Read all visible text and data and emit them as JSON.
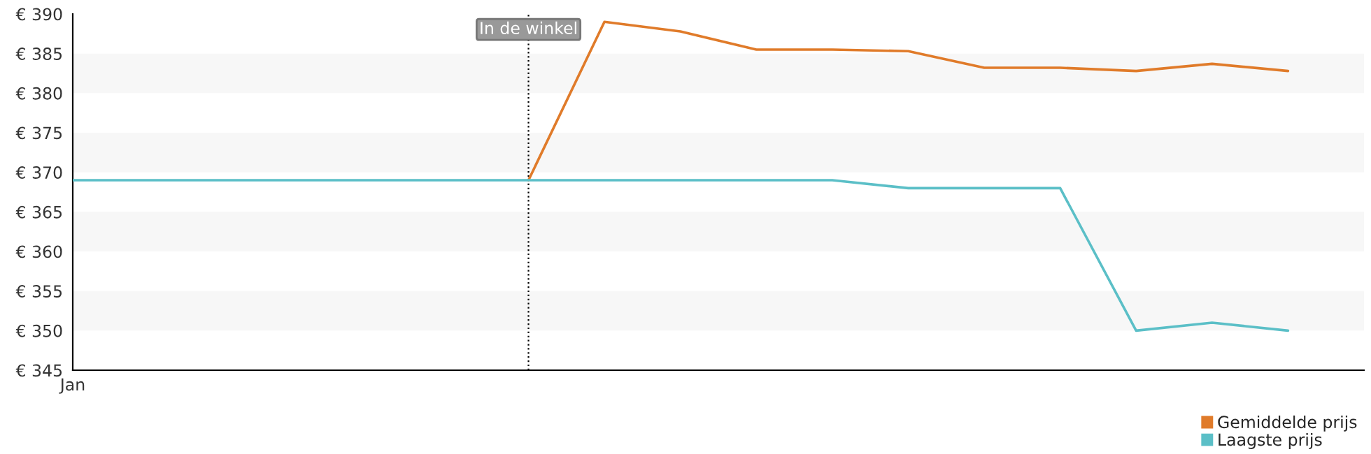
{
  "chart_data": {
    "type": "line",
    "categories": [
      "Jan",
      null,
      null,
      null,
      null,
      null,
      null,
      null,
      null,
      null,
      null,
      null,
      null,
      null,
      null,
      null,
      null,
      null
    ],
    "series": [
      {
        "name": "Gemiddelde prijs",
        "color": "#e07b2a",
        "values": [
          null,
          null,
          null,
          null,
          null,
          null,
          369,
          389,
          387.8,
          385.5,
          385.5,
          385.3,
          383.2,
          383.2,
          382.8,
          383.7,
          382.8,
          null
        ]
      },
      {
        "name": "Laagste prijs",
        "color": "#5bbfc7",
        "values": [
          369,
          369,
          369,
          369,
          369,
          369,
          369,
          369,
          369,
          369,
          369,
          368,
          368,
          368,
          350,
          351,
          350,
          null
        ]
      }
    ],
    "ylim": [
      345,
      390
    ],
    "yticks": [
      {
        "value": 345,
        "label": "€ 345"
      },
      {
        "value": 350,
        "label": "€ 350"
      },
      {
        "value": 355,
        "label": "€ 355"
      },
      {
        "value": 360,
        "label": "€ 360"
      },
      {
        "value": 365,
        "label": "€ 365"
      },
      {
        "value": 370,
        "label": "€ 370"
      },
      {
        "value": 375,
        "label": "€ 375"
      },
      {
        "value": 380,
        "label": "€ 380"
      },
      {
        "value": 385,
        "label": "€ 385"
      },
      {
        "value": 390,
        "label": "€ 390"
      }
    ],
    "bands": [
      {
        "axis": "y",
        "from": 350,
        "to": 355,
        "color": "#f7f7f7"
      },
      {
        "axis": "y",
        "from": 360,
        "to": 365,
        "color": "#f7f7f7"
      },
      {
        "axis": "y",
        "from": 370,
        "to": 375,
        "color": "#f7f7f7"
      },
      {
        "axis": "y",
        "from": 380,
        "to": 385,
        "color": "#f7f7f7"
      }
    ],
    "annotations": [
      "In de winkel"
    ],
    "legend": "bottom right",
    "grid": false,
    "line_style": "solid",
    "marker": "none"
  }
}
